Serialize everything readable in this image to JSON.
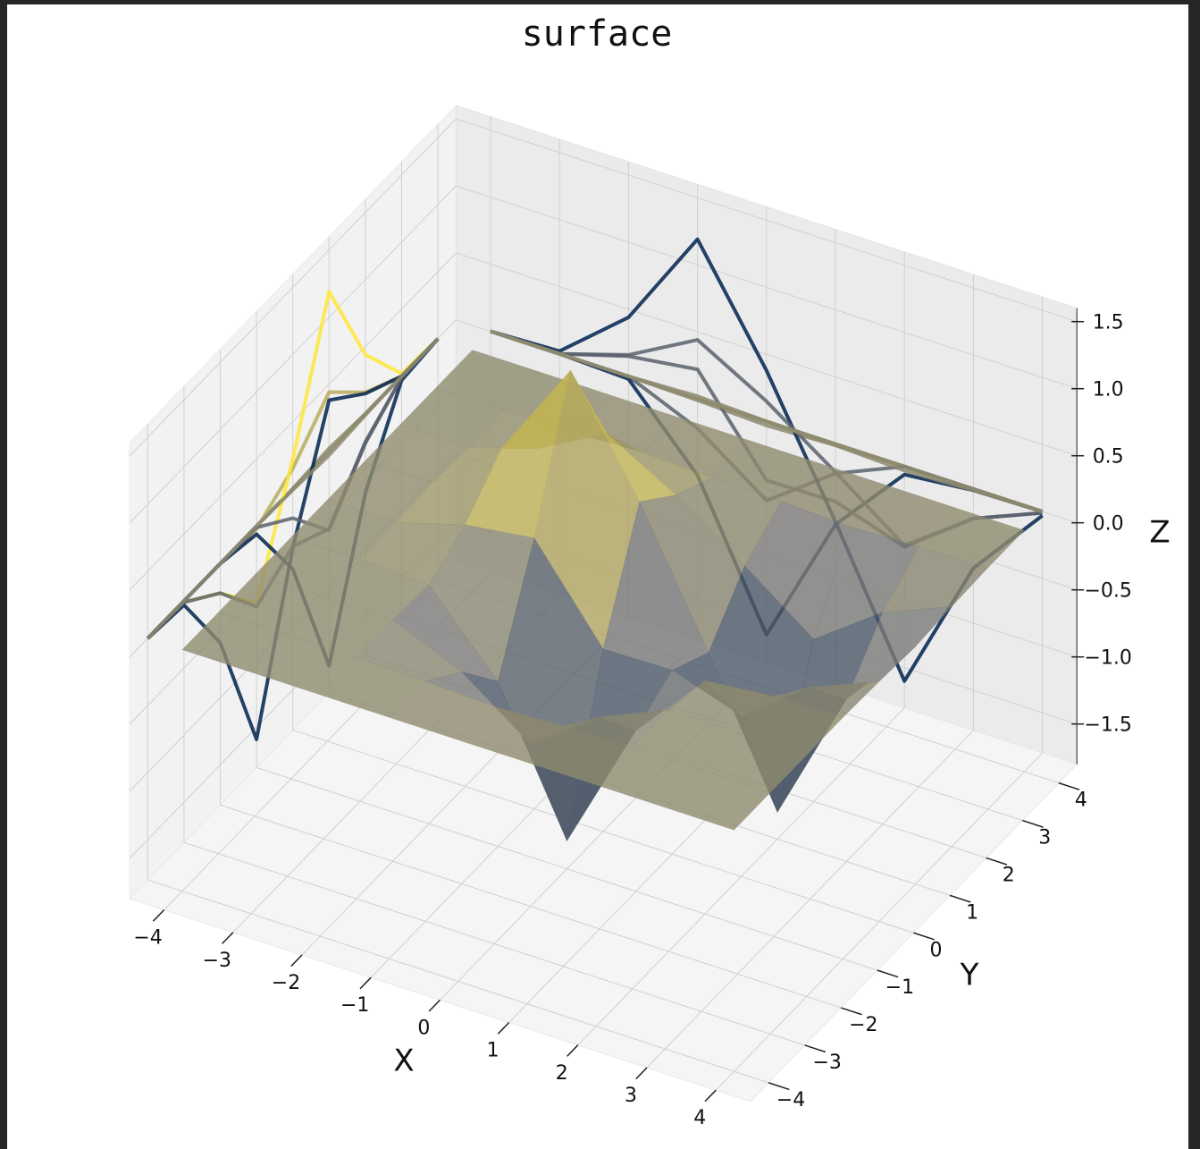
{
  "chart_data": {
    "type": "surface",
    "title": "surface",
    "x_label": "X",
    "y_label": "Y",
    "z_label": "Z",
    "x": [
      -4,
      -3,
      -2,
      -1,
      0,
      1,
      2,
      3,
      4
    ],
    "y": [
      -4,
      -3,
      -2,
      -1,
      0,
      1,
      2,
      3,
      4
    ],
    "z": [
      [
        0,
        0,
        0,
        0,
        0,
        0,
        0,
        0,
        0
      ],
      [
        0,
        0,
        0,
        -0.01,
        -0.03,
        -0.01,
        0,
        0,
        0
      ],
      [
        0,
        0,
        0,
        -0.22,
        -0.59,
        -0.22,
        0,
        0,
        0
      ],
      [
        0,
        0,
        -0.02,
        -0.57,
        -1.59,
        -0.6,
        -0.06,
        -0.01,
        0
      ],
      [
        0,
        0,
        0.15,
        0.22,
        -0.44,
        -0.43,
        -0.6,
        -0.22,
        -0.01
      ],
      [
        0,
        0.02,
        0.44,
        1.19,
        0.38,
        -0.58,
        -1.6,
        -0.59,
        -0.03
      ],
      [
        0,
        0,
        0.16,
        0.44,
        0.15,
        -0.21,
        -0.59,
        -0.22,
        -0.01
      ],
      [
        0,
        0,
        0,
        0.02,
        0,
        -0.01,
        -0.03,
        -0.01,
        0
      ],
      [
        0,
        0,
        0,
        0,
        0,
        0,
        0,
        0,
        0
      ]
    ],
    "colormap": [
      "#00224e",
      "#7c7b78",
      "#fee838"
    ],
    "xlim": [
      -4.5,
      4.5
    ],
    "ylim": [
      -4.5,
      4.5
    ],
    "zlim": [
      -1.8,
      1.6
    ],
    "xticks": [
      {
        "value": -4,
        "label": "−4"
      },
      {
        "value": -3,
        "label": "−3"
      },
      {
        "value": -2,
        "label": "−2"
      },
      {
        "value": -1,
        "label": "−1"
      },
      0,
      1,
      2,
      3,
      4
    ],
    "yticks": [
      {
        "value": -4,
        "label": "−4"
      },
      {
        "value": -3,
        "label": "−3"
      },
      {
        "value": -2,
        "label": "−2"
      },
      {
        "value": -1,
        "label": "−1"
      },
      0,
      1,
      2,
      3,
      4
    ],
    "zticks": [
      {
        "value": -1.5,
        "label": "−1.5"
      },
      {
        "value": -1,
        "label": "−1.0"
      },
      {
        "value": -0.5,
        "label": "−0.5"
      },
      {
        "value": 0,
        "label": "0.0"
      },
      0.5,
      {
        "value": 1,
        "label": "1.0"
      },
      1.5
    ],
    "grid": true
  }
}
